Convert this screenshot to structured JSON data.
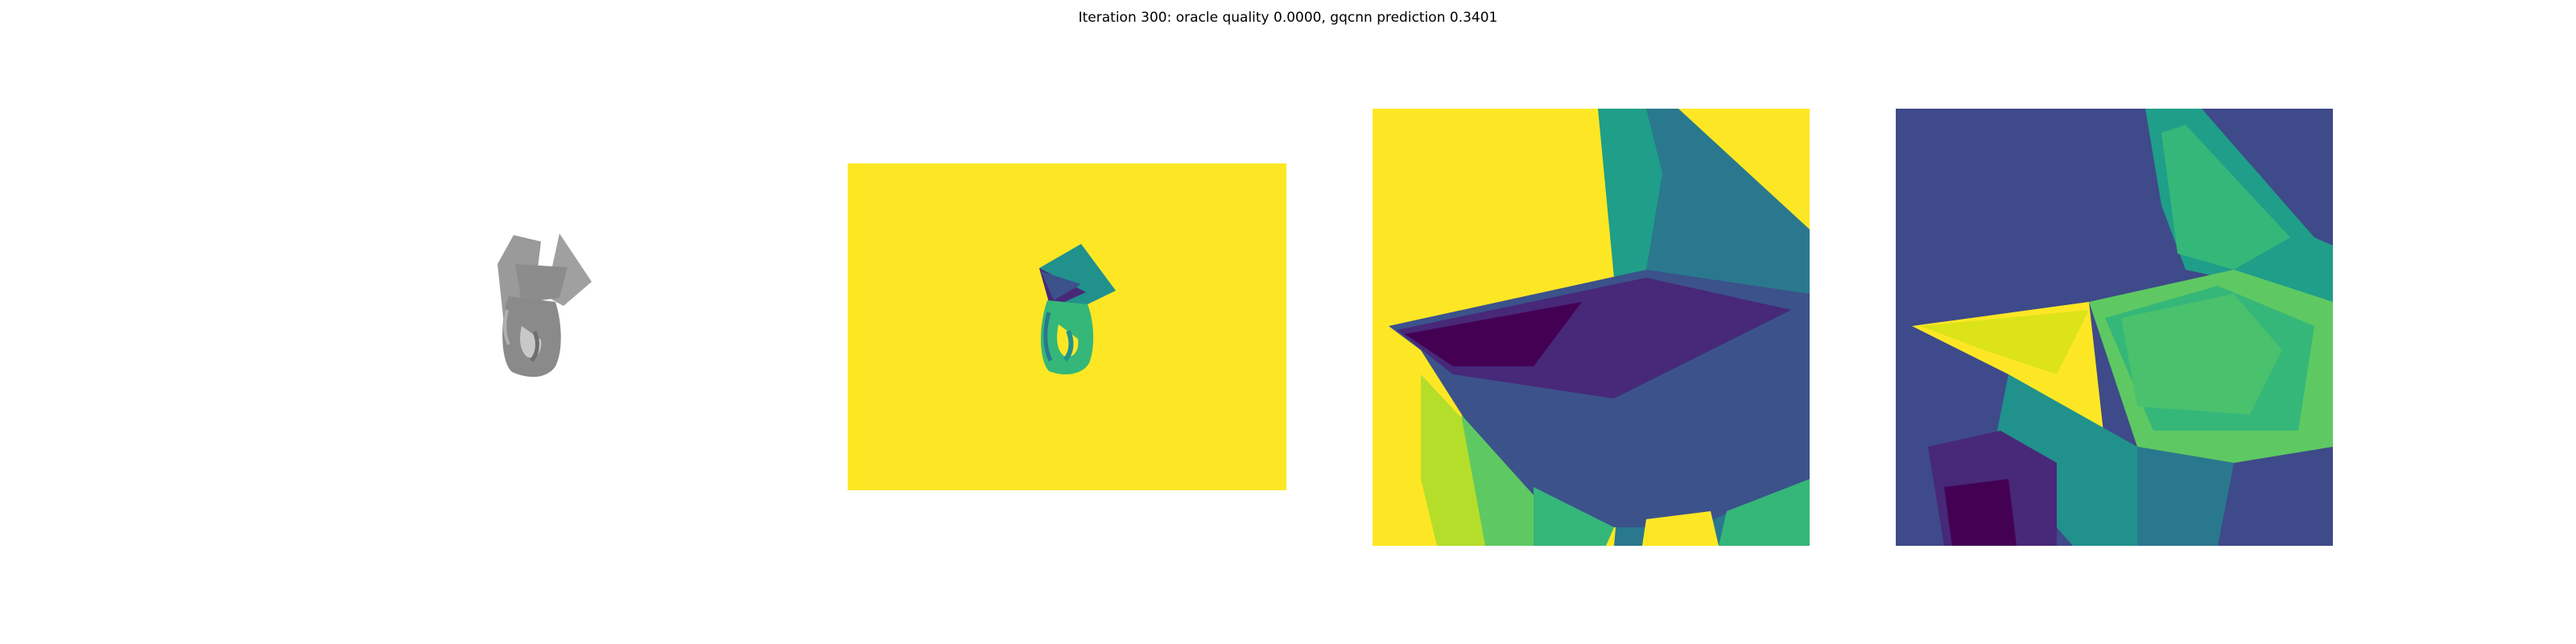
{
  "figure": {
    "suptitle": "Iteration 300: oracle quality 0.0000, gqcnn prediction 0.3401"
  },
  "panels": [
    {
      "name": "rendered-object-view"
    },
    {
      "name": "depth-image-view"
    },
    {
      "name": "depth-crop-view"
    },
    {
      "name": "gradient-crop-view"
    }
  ],
  "colors": {
    "background": "#ffffff",
    "viridis_yellow": "#fde725",
    "viridis_purple": "#440154",
    "viridis_blue": "#3b528b",
    "viridis_teal": "#21918c",
    "viridis_green": "#5ec962",
    "object_gray": "#8a8a8a"
  }
}
